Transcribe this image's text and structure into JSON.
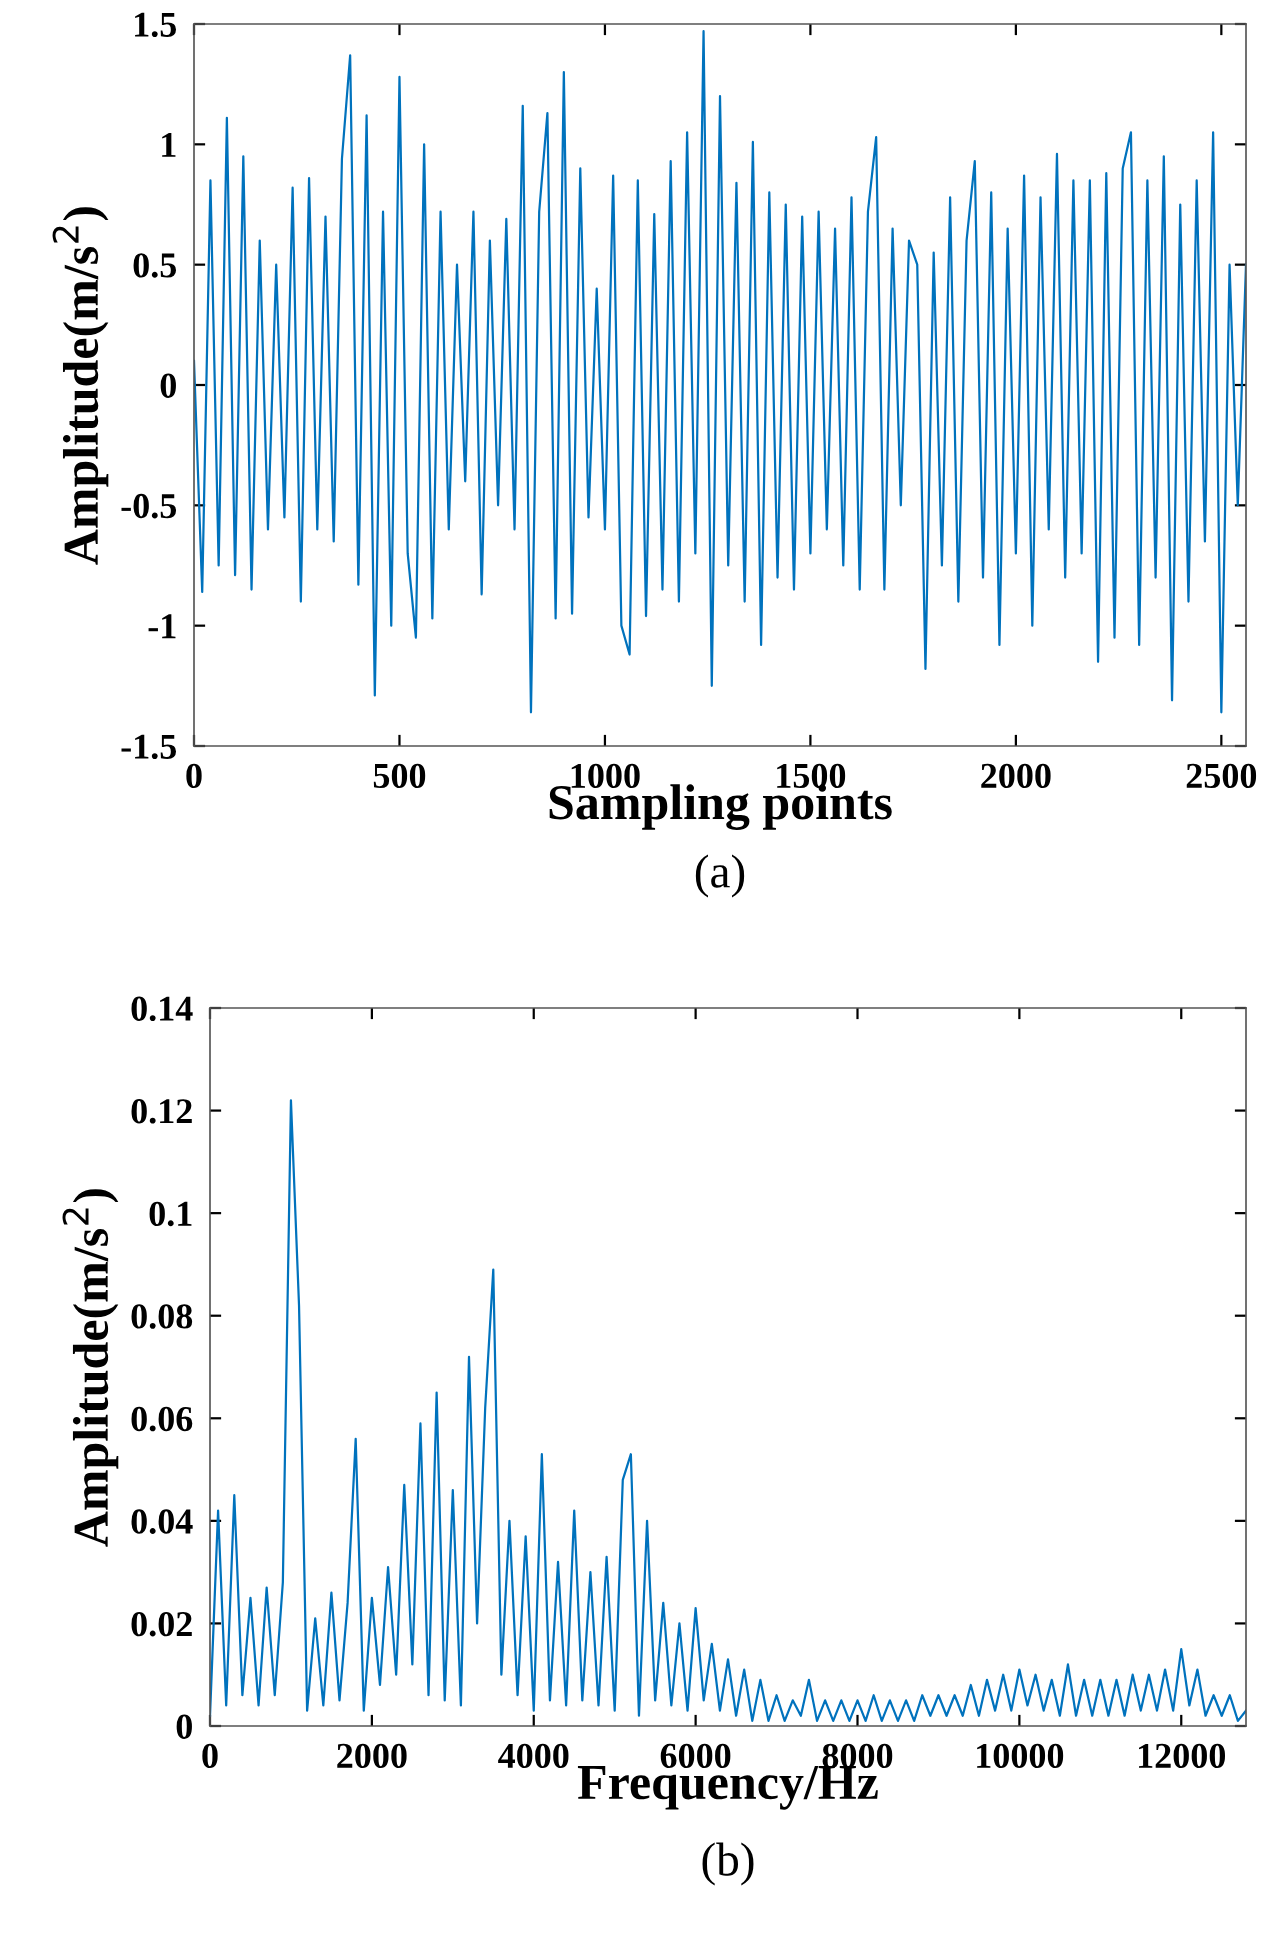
{
  "chart_data": [
    {
      "type": "line",
      "xlabel": "Sampling points",
      "ylabel": "Amplitude(m/s$^{2}$)",
      "annotations": [
        "(a)"
      ],
      "xlim": [
        0,
        2560
      ],
      "ylim": [
        -1.5,
        1.5
      ],
      "xticks": [
        0,
        500,
        1000,
        1500,
        2000,
        2500
      ],
      "yticks": [
        -1.5,
        -1,
        -0.5,
        0,
        0.5,
        1,
        1.5
      ],
      "grid": false,
      "legend": false,
      "marker": "none",
      "line_style": "solid",
      "series": [
        {
          "color": "#0072bd",
          "x": [
            0,
            20,
            40,
            60,
            80,
            100,
            120,
            140,
            160,
            180,
            200,
            220,
            240,
            260,
            280,
            300,
            320,
            340,
            360,
            380,
            400,
            420,
            440,
            460,
            480,
            500,
            520,
            540,
            560,
            580,
            600,
            620,
            640,
            660,
            680,
            700,
            720,
            740,
            760,
            780,
            800,
            820,
            840,
            860,
            880,
            900,
            920,
            940,
            960,
            980,
            1000,
            1020,
            1040,
            1060,
            1080,
            1100,
            1120,
            1140,
            1160,
            1180,
            1200,
            1220,
            1240,
            1260,
            1280,
            1300,
            1320,
            1340,
            1360,
            1380,
            1400,
            1420,
            1440,
            1460,
            1480,
            1500,
            1520,
            1540,
            1560,
            1580,
            1600,
            1620,
            1640,
            1660,
            1680,
            1700,
            1720,
            1740,
            1760,
            1780,
            1800,
            1820,
            1840,
            1860,
            1880,
            1900,
            1920,
            1940,
            1960,
            1980,
            2000,
            2020,
            2040,
            2060,
            2080,
            2100,
            2120,
            2140,
            2160,
            2180,
            2200,
            2220,
            2240,
            2260,
            2280,
            2300,
            2320,
            2340,
            2360,
            2380,
            2400,
            2420,
            2440,
            2460,
            2480,
            2500,
            2520,
            2540,
            2560
          ],
          "values": [
            0.1,
            -0.86,
            0.85,
            -0.75,
            1.11,
            -0.79,
            0.95,
            -0.85,
            0.6,
            -0.6,
            0.5,
            -0.55,
            0.82,
            -0.9,
            0.86,
            -0.6,
            0.7,
            -0.65,
            0.94,
            1.37,
            -0.83,
            1.12,
            -1.29,
            0.72,
            -1.0,
            1.28,
            -0.7,
            -1.05,
            1.0,
            -0.97,
            0.72,
            -0.6,
            0.5,
            -0.4,
            0.72,
            -0.87,
            0.6,
            -0.5,
            0.69,
            -0.6,
            1.16,
            -1.36,
            0.72,
            1.13,
            -0.97,
            1.3,
            -0.95,
            0.9,
            -0.55,
            0.4,
            -0.6,
            0.87,
            -1.0,
            -1.12,
            0.85,
            -0.96,
            0.71,
            -0.85,
            0.93,
            -0.9,
            1.05,
            -0.7,
            1.47,
            -1.25,
            1.2,
            -0.75,
            0.84,
            -0.9,
            1.01,
            -1.08,
            0.8,
            -0.8,
            0.75,
            -0.85,
            0.7,
            -0.7,
            0.72,
            -0.6,
            0.65,
            -0.75,
            0.78,
            -0.85,
            0.72,
            1.03,
            -0.85,
            0.65,
            -0.5,
            0.6,
            0.5,
            -1.18,
            0.55,
            -0.75,
            0.78,
            -0.9,
            0.6,
            0.93,
            -0.8,
            0.8,
            -1.08,
            0.65,
            -0.7,
            0.87,
            -1.0,
            0.78,
            -0.6,
            0.96,
            -0.8,
            0.85,
            -0.7,
            0.85,
            -1.15,
            0.88,
            -1.05,
            0.9,
            1.05,
            -1.08,
            0.85,
            -0.8,
            0.95,
            -1.31,
            0.75,
            -0.9,
            0.85,
            -0.65,
            1.05,
            -1.36,
            0.5,
            -0.5,
            0.5
          ]
        }
      ]
    },
    {
      "type": "line",
      "xlabel": "Frequency/Hz",
      "ylabel": "Amplitude(m/s$^{2}$)",
      "annotations": [
        "(b)"
      ],
      "xlim": [
        0,
        12800
      ],
      "ylim": [
        0,
        0.14
      ],
      "xticks": [
        0,
        2000,
        4000,
        6000,
        8000,
        10000,
        12000
      ],
      "yticks": [
        0,
        0.02,
        0.04,
        0.06,
        0.08,
        0.1,
        0.12,
        0.14
      ],
      "grid": false,
      "legend": false,
      "marker": "none",
      "line_style": "solid",
      "series": [
        {
          "color": "#0072bd",
          "x": [
            0,
            100,
            200,
            300,
            400,
            500,
            600,
            700,
            800,
            900,
            1000,
            1100,
            1200,
            1300,
            1400,
            1500,
            1600,
            1700,
            1800,
            1900,
            2000,
            2100,
            2200,
            2300,
            2400,
            2500,
            2600,
            2700,
            2800,
            2900,
            3000,
            3100,
            3200,
            3300,
            3400,
            3500,
            3600,
            3700,
            3800,
            3900,
            4000,
            4100,
            4200,
            4300,
            4400,
            4500,
            4600,
            4700,
            4800,
            4900,
            5000,
            5100,
            5200,
            5300,
            5400,
            5500,
            5600,
            5700,
            5800,
            5900,
            6000,
            6100,
            6200,
            6300,
            6400,
            6500,
            6600,
            6700,
            6800,
            6900,
            7000,
            7100,
            7200,
            7300,
            7400,
            7500,
            7600,
            7700,
            7800,
            7900,
            8000,
            8100,
            8200,
            8300,
            8400,
            8500,
            8600,
            8700,
            8800,
            8900,
            9000,
            9100,
            9200,
            9300,
            9400,
            9500,
            9600,
            9700,
            9800,
            9900,
            10000,
            10100,
            10200,
            10300,
            10400,
            10500,
            10600,
            10700,
            10800,
            10900,
            11000,
            11100,
            11200,
            11300,
            11400,
            11500,
            11600,
            11700,
            11800,
            11900,
            12000,
            12100,
            12200,
            12300,
            12400,
            12500,
            12600,
            12700,
            12800
          ],
          "values": [
            0.002,
            0.042,
            0.004,
            0.045,
            0.006,
            0.025,
            0.004,
            0.027,
            0.006,
            0.028,
            0.122,
            0.082,
            0.003,
            0.021,
            0.004,
            0.026,
            0.005,
            0.024,
            0.056,
            0.003,
            0.025,
            0.008,
            0.031,
            0.01,
            0.047,
            0.012,
            0.059,
            0.006,
            0.065,
            0.005,
            0.046,
            0.004,
            0.072,
            0.02,
            0.062,
            0.089,
            0.01,
            0.04,
            0.006,
            0.037,
            0.003,
            0.053,
            0.005,
            0.032,
            0.004,
            0.042,
            0.005,
            0.03,
            0.004,
            0.033,
            0.003,
            0.048,
            0.053,
            0.002,
            0.04,
            0.005,
            0.024,
            0.004,
            0.02,
            0.003,
            0.023,
            0.005,
            0.016,
            0.003,
            0.013,
            0.002,
            0.011,
            0.001,
            0.009,
            0.001,
            0.006,
            0.001,
            0.005,
            0.002,
            0.009,
            0.001,
            0.005,
            0.001,
            0.005,
            0.001,
            0.005,
            0.001,
            0.006,
            0.001,
            0.005,
            0.001,
            0.005,
            0.001,
            0.006,
            0.002,
            0.006,
            0.002,
            0.006,
            0.002,
            0.008,
            0.002,
            0.009,
            0.003,
            0.01,
            0.003,
            0.011,
            0.004,
            0.01,
            0.003,
            0.009,
            0.002,
            0.012,
            0.002,
            0.009,
            0.002,
            0.009,
            0.002,
            0.009,
            0.002,
            0.01,
            0.003,
            0.01,
            0.003,
            0.011,
            0.003,
            0.015,
            0.004,
            0.011,
            0.002,
            0.006,
            0.002,
            0.006,
            0.001,
            0.003
          ]
        }
      ]
    }
  ]
}
